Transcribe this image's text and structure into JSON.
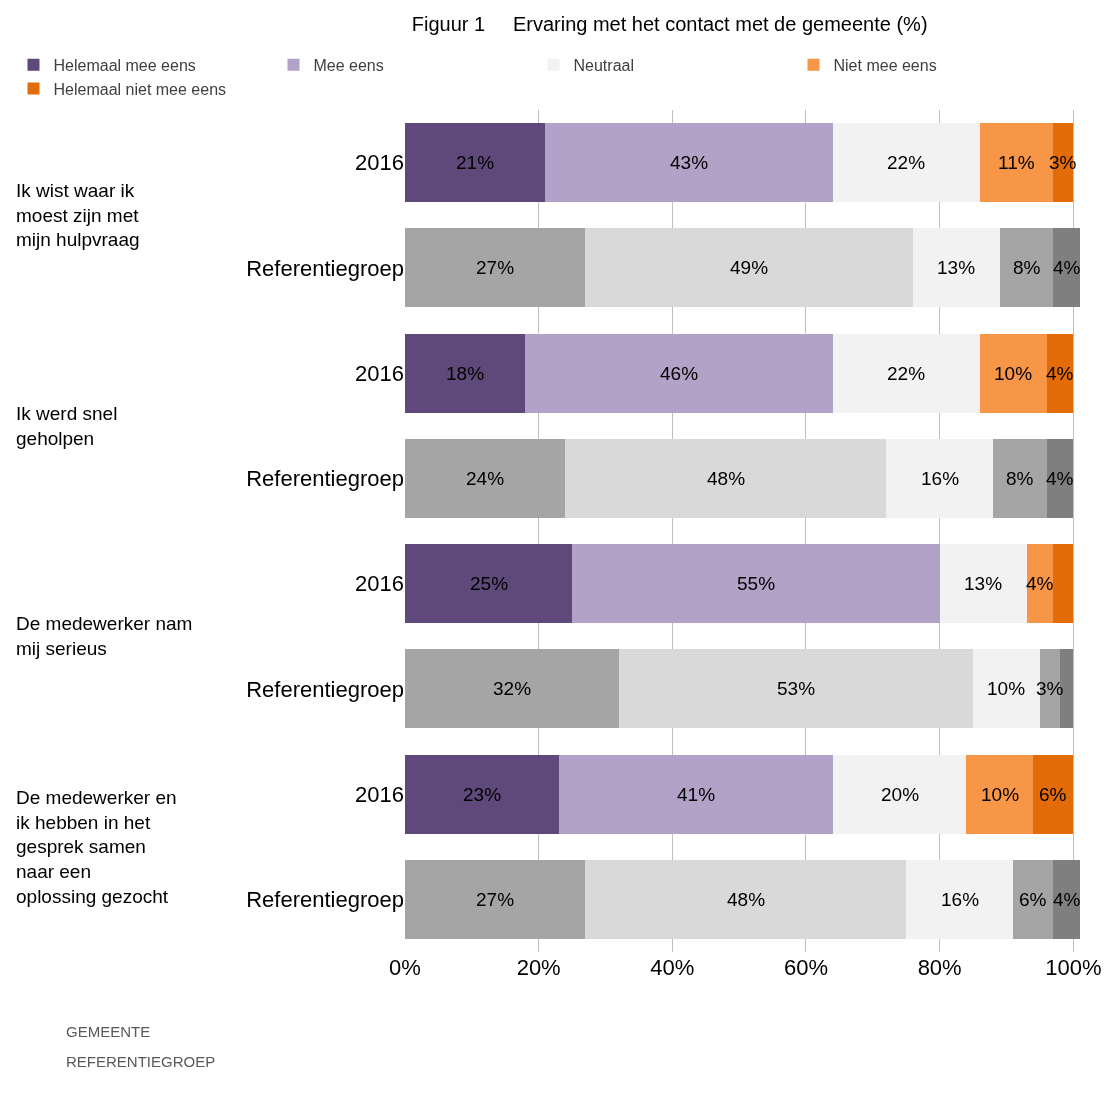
{
  "chart_data": {
    "type": "bar",
    "orientation": "horizontal",
    "stacked": true,
    "title": "Figuur 1     Ervaring met het contact met de gemeente (%)",
    "categories": [
      "2016",
      "Referentiegroep",
      "2016",
      "Referentiegroep",
      "2016",
      "Referentiegroep",
      "2016",
      "Referentiegroep"
    ],
    "series": [
      {
        "name": "Helemaal mee eens",
        "colors": [
          "#5f497a",
          "#a5a5a5",
          "#5f497a",
          "#a5a5a5",
          "#5f497a",
          "#a5a5a5",
          "#5f497a",
          "#a5a5a5"
        ],
        "values": [
          21,
          27,
          18,
          24,
          25,
          32,
          23,
          27
        ],
        "value_labels": [
          "21%",
          "27%",
          "18%",
          "24%",
          "25%",
          "32%",
          "23%",
          "27%"
        ]
      },
      {
        "name": "Mee eens",
        "colors": [
          "#b3a2c7",
          "#d9d9d9",
          "#b3a2c7",
          "#d9d9d9",
          "#b3a2c7",
          "#d9d9d9",
          "#b3a2c7",
          "#d9d9d9"
        ],
        "values": [
          43,
          49,
          46,
          48,
          55,
          53,
          41,
          48
        ],
        "value_labels": [
          "43%",
          "49%",
          "46%",
          "48%",
          "55%",
          "53%",
          "41%",
          "48%"
        ]
      },
      {
        "name": "Neutraal",
        "colors": [
          "#f2f2f2",
          "#f2f2f2",
          "#f2f2f2",
          "#f2f2f2",
          "#f2f2f2",
          "#f2f2f2",
          "#f2f2f2",
          "#f2f2f2"
        ],
        "values": [
          22,
          13,
          22,
          16,
          13,
          10,
          20,
          16
        ],
        "value_labels": [
          "22%",
          "13%",
          "22%",
          "16%",
          "13%",
          "10%",
          "20%",
          "16%"
        ]
      },
      {
        "name": "Niet mee eens",
        "colors": [
          "#f79646",
          "#a5a5a5",
          "#f79646",
          "#a5a5a5",
          "#f79646",
          "#a5a5a5",
          "#f79646",
          "#a5a5a5"
        ],
        "values": [
          11,
          8,
          10,
          8,
          4,
          3,
          10,
          6
        ],
        "value_labels": [
          "11%",
          "8%",
          "10%",
          "8%",
          "4%",
          "3%",
          "10%",
          "6%"
        ]
      },
      {
        "name": "Helemaal niet mee eens",
        "colors": [
          "#e36c09",
          "#7f7f7f",
          "#e36c09",
          "#7f7f7f",
          "#e36c09",
          "#7f7f7f",
          "#e36c09",
          "#7f7f7f"
        ],
        "values": [
          3,
          4,
          4,
          4,
          3,
          2,
          6,
          4
        ],
        "value_labels": [
          "3%",
          "4%",
          "4%",
          "4%",
          null,
          null,
          "6%",
          "4%"
        ]
      }
    ],
    "xlim": [
      0,
      101
    ],
    "xticks": [
      {
        "value": 0,
        "label": "0%"
      },
      {
        "value": 20,
        "label": "20%"
      },
      {
        "value": 40,
        "label": "40%"
      },
      {
        "value": 60,
        "label": "60%"
      },
      {
        "value": 80,
        "label": "80%"
      },
      {
        "value": 100,
        "label": "100%"
      }
    ],
    "grid": "x",
    "legend": "top",
    "annotations": [
      "Ik wist waar ik moest zijn met mijn hulpvraag",
      "Ik werd snel geholpen",
      "De medewerker nam mij serieus",
      "De medewerker en ik hebben in het gesprek samen naar een oplossing gezocht",
      "GEMEENTE",
      "REFERENTIEGROEP"
    ]
  }
}
